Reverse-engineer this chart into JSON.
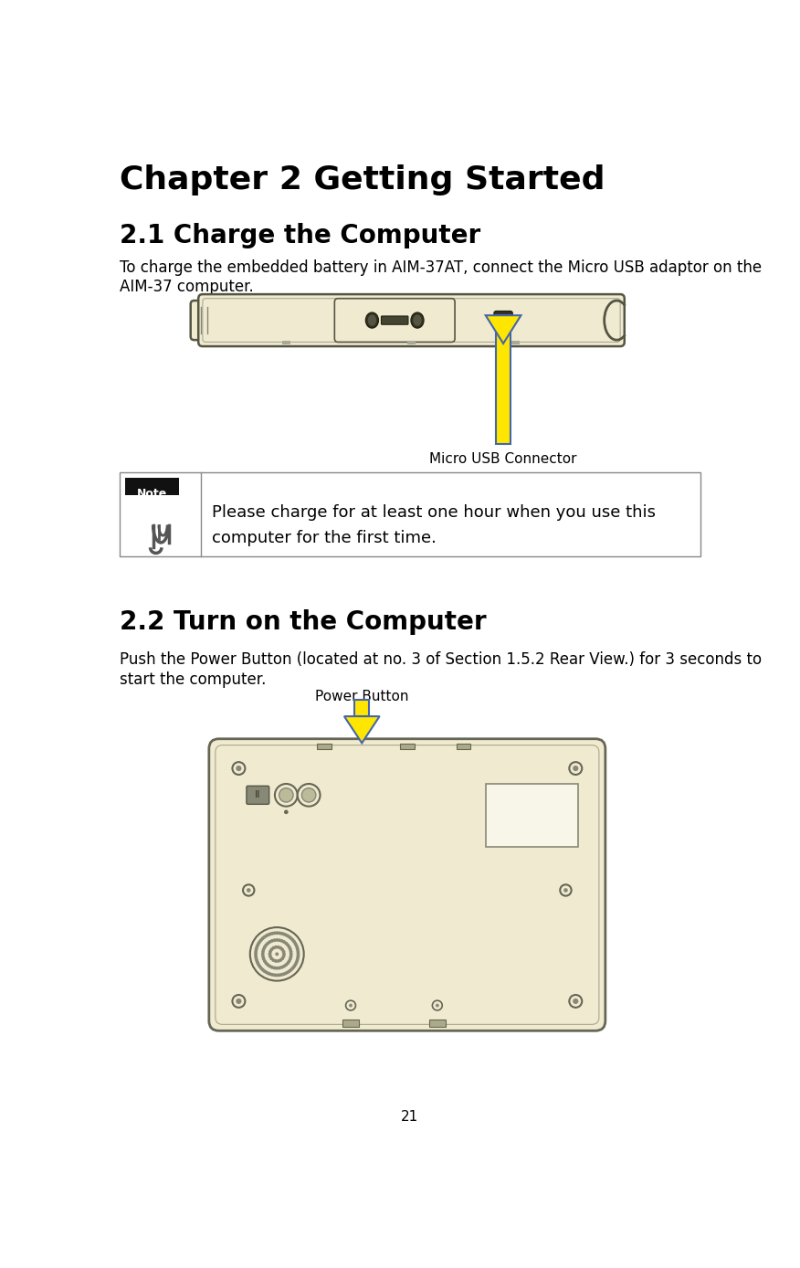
{
  "title": "Chapter 2 Getting Started",
  "section1_title": "2.1 Charge the Computer",
  "section1_body1": "To charge the embedded battery in AIM-37AT, connect the Micro USB adaptor on the",
  "section1_body2": "AIM-37 computer.",
  "micro_usb_label": "Micro USB Connector",
  "note_text1": "Please charge for at least one hour when you use this",
  "note_text2": "computer for the first time.",
  "section2_title": "2.2 Turn on the Computer",
  "section2_body1": "Push the Power Button (located at no. 3 of Section 1.5.2 Rear View.) for 3 seconds to",
  "section2_body2": "start the computer.",
  "power_button_label": "Power Button",
  "page_number": "21",
  "bg_color": "#ffffff",
  "text_color": "#000000",
  "title_fontsize": 26,
  "section_fontsize": 20,
  "body_fontsize": 12,
  "note_fontsize": 13,
  "label_fontsize": 11,
  "arrow_yellow": "#FFE600",
  "arrow_blue_border": "#4466AA",
  "device_body_color": "#F0EAD0",
  "device_border_color": "#888877",
  "note_header_bg": "#1a1a2e",
  "note_header_color": "#ffffff"
}
